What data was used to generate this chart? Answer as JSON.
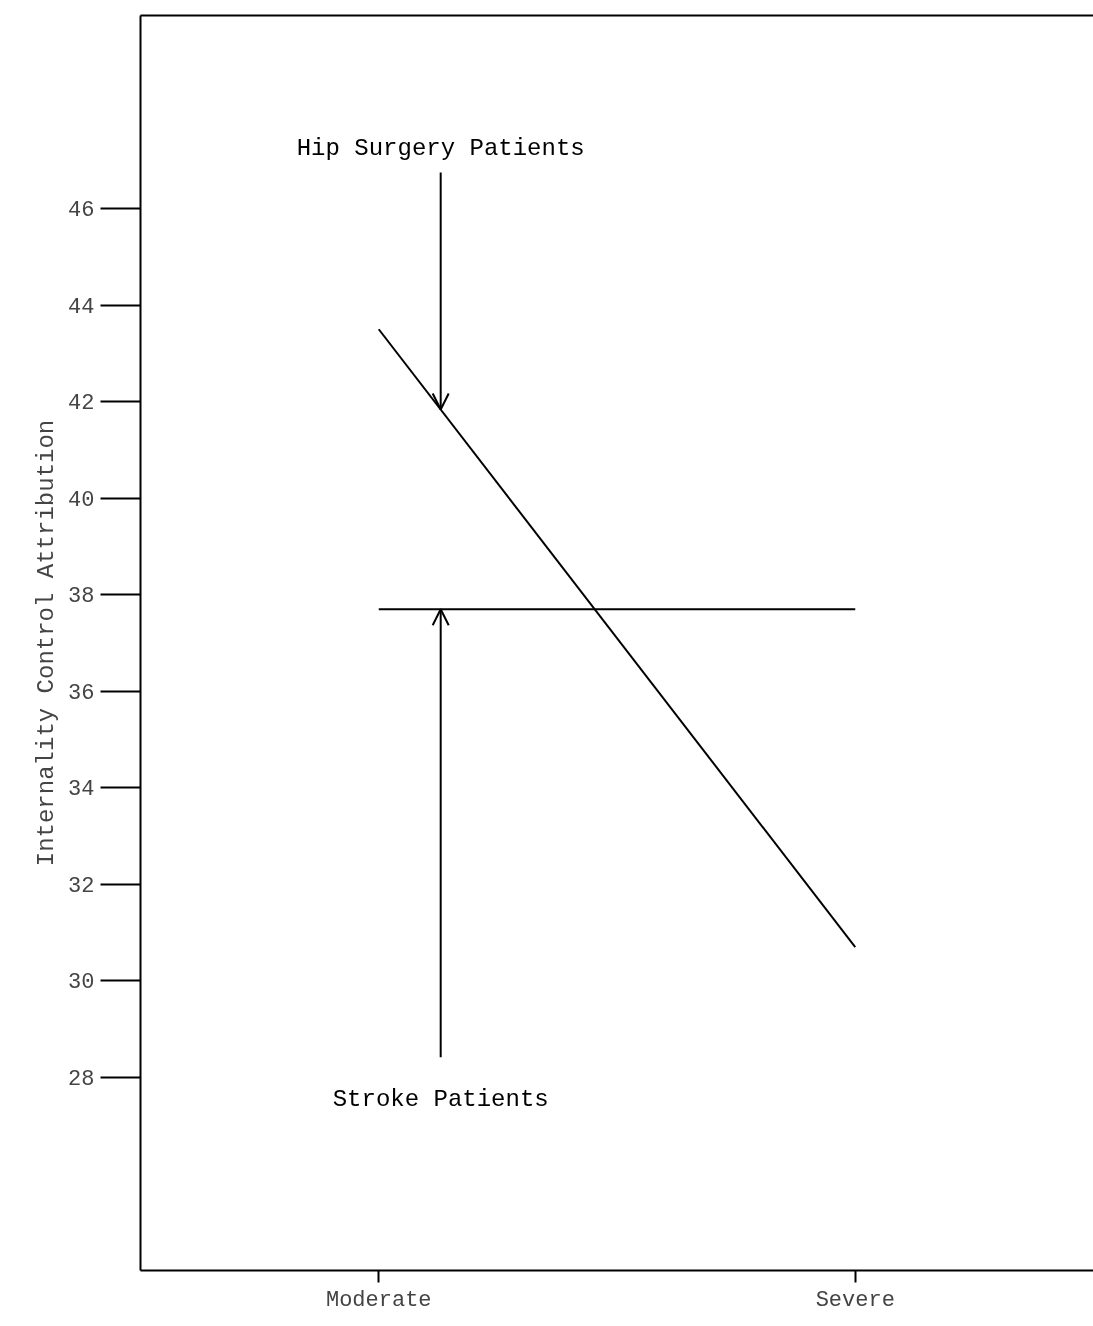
{
  "chart_data": {
    "type": "line",
    "ylabel": "Internality Control Attribution",
    "categories": [
      "Moderate",
      "Severe"
    ],
    "series": [
      {
        "name": "Hip Surgery Patients",
        "color": "#000000",
        "values": [
          43.5,
          30.7
        ]
      },
      {
        "name": "Stroke Patients",
        "color": "#000000",
        "values": [
          37.7,
          37.7
        ]
      }
    ],
    "ylim": [
      24,
      50
    ],
    "yticks": [
      28,
      30,
      32,
      34,
      36,
      38,
      40,
      42,
      44,
      46
    ],
    "grid": false,
    "marker": "none",
    "line_style": "solid"
  }
}
